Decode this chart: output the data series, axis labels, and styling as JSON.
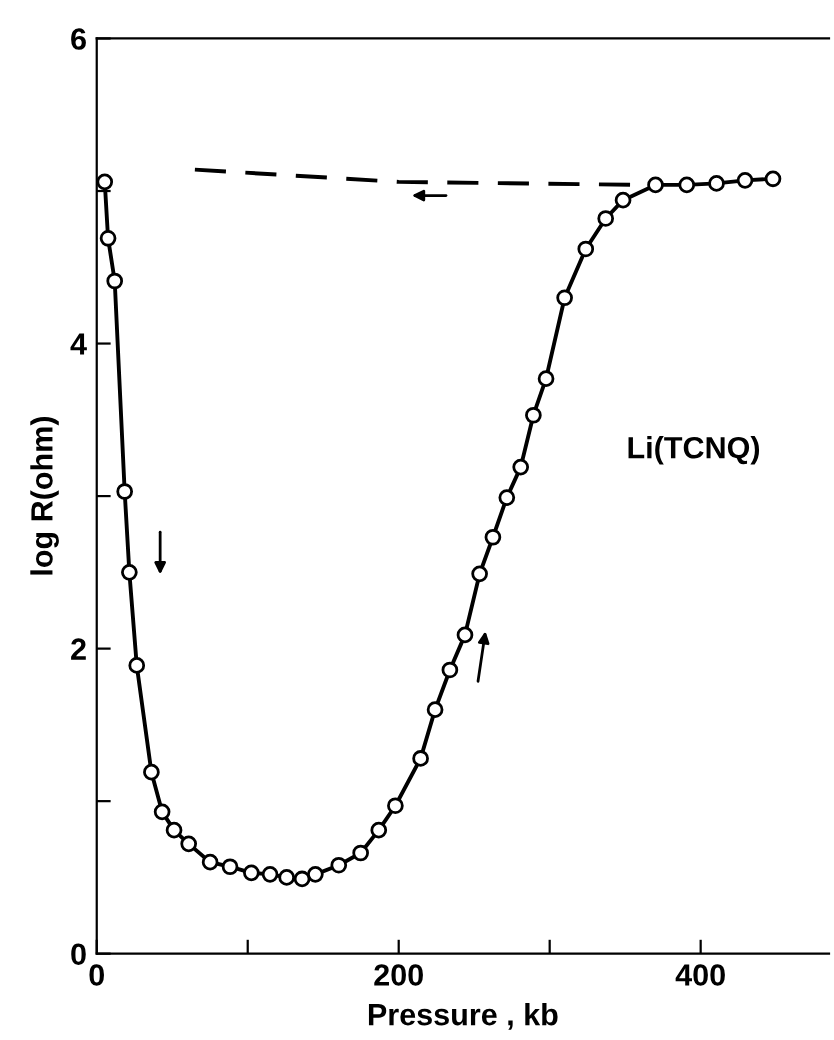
{
  "chart_data": {
    "type": "line",
    "xlabel": "Pressure , kb",
    "ylabel": "log R(ohm)",
    "annotations": [
      "Li(TCNQ)"
    ],
    "xlim": [
      0,
      485
    ],
    "ylim": [
      0,
      6
    ],
    "xticks": [
      0,
      {
        "value": 100,
        "label": null
      },
      200,
      {
        "value": 300,
        "label": null
      },
      400
    ],
    "yticks": [
      0,
      {
        "value": 1,
        "label": null
      },
      2,
      {
        "value": 3,
        "label": null
      },
      4,
      {
        "value": 5,
        "label": null
      },
      6
    ],
    "grid": false,
    "legend": false,
    "series": [
      {
        "color": "#000000",
        "marker": "circle",
        "line_style": "solid",
        "x": [
          5.3,
          7.5,
          11.9,
          18.5,
          21.6,
          26.5,
          36.2,
          43.3,
          51.2,
          60.9,
          75.1,
          88.3,
          102.4,
          114.8,
          125.8,
          136,
          144.8,
          160.3,
          174.8,
          186.8,
          197.8,
          214.5,
          224.1,
          233.9,
          243.9,
          253.6,
          262.4,
          271.6,
          280.8,
          289.2,
          297.6,
          309.9,
          323.9,
          337.1,
          348.6,
          370.1,
          390.8,
          410.5,
          429.4,
          447.9
        ],
        "values": [
          5.06,
          4.69,
          4.41,
          3.03,
          2.5,
          1.89,
          1.19,
          0.93,
          0.81,
          0.72,
          0.6,
          0.57,
          0.53,
          0.52,
          0.5,
          0.49,
          0.52,
          0.58,
          0.66,
          0.81,
          0.97,
          1.28,
          1.6,
          1.86,
          2.09,
          2.49,
          2.73,
          2.99,
          3.19,
          3.53,
          3.77,
          4.3,
          4.62,
          4.82,
          4.94,
          5.04,
          5.04,
          5.05,
          5.07,
          5.08
        ]
      },
      {
        "color": "#000000",
        "marker": "none",
        "line_style": "dashed",
        "x": [
          65,
          200,
          360
        ],
        "values": [
          5.14,
          5.06,
          5.04
        ]
      }
    ]
  }
}
